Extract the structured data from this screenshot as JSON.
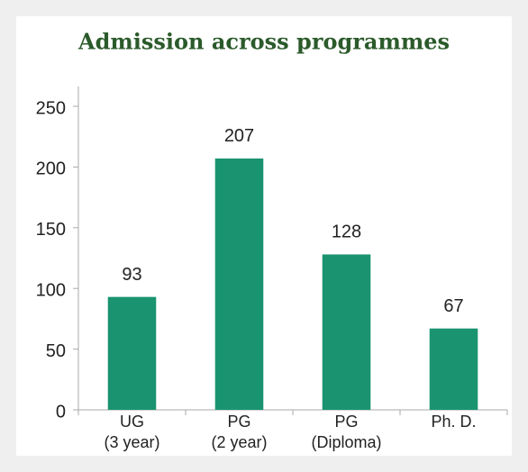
{
  "chart_data": {
    "type": "bar",
    "title": "Admission across programmes",
    "categories": [
      "UG\n(3 year)",
      "PG\n(2 year)",
      "PG\n(Diploma)",
      "Ph. D."
    ],
    "values": [
      93,
      207,
      128,
      67
    ],
    "color": "#1a9470",
    "ylim": [
      0,
      250
    ],
    "yticks": [
      0,
      50,
      100,
      150,
      200,
      250
    ],
    "grid": false
  }
}
